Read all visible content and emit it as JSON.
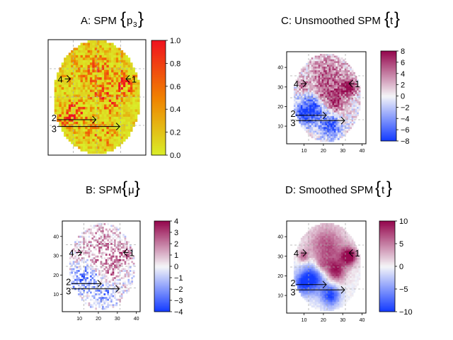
{
  "chart_data": [
    {
      "type": "heatmap",
      "id": "A",
      "title_prefix": "A: SPM",
      "title_symbol": "p",
      "title_subscript": "3",
      "palette": "yellow-red",
      "zlim": [
        0,
        1
      ],
      "colorbar_ticks": [
        "0.0",
        "0.2",
        "0.4",
        "0.6",
        "0.8",
        "1.0"
      ],
      "show_axes": false,
      "grid": true,
      "annotations": [
        "1",
        "2",
        "3",
        "4"
      ],
      "description": "p-value map of brain slice; mostly low values with clusters near 1"
    },
    {
      "type": "heatmap",
      "id": "C",
      "title_prefix": "C: Unsmoothed SPM",
      "title_symbol": "t",
      "palette": "blue-white-magenta",
      "zlim": [
        -8,
        8
      ],
      "colorbar_ticks": [
        "−8",
        "−6",
        "−4",
        "−2",
        "0",
        "2",
        "4",
        "6",
        "8"
      ],
      "x_ticks": [
        "10",
        "20",
        "30",
        "40"
      ],
      "y_ticks": [
        "10",
        "20",
        "30",
        "40"
      ],
      "xlim": [
        1,
        42
      ],
      "ylim": [
        1,
        48
      ],
      "grid": true,
      "annotations": [
        "1",
        "2",
        "3",
        "4"
      ]
    },
    {
      "type": "heatmap",
      "id": "B",
      "title_prefix": "B: SPM",
      "title_symbol": "μ",
      "palette": "blue-white-magenta",
      "zlim": [
        -4,
        4
      ],
      "colorbar_ticks": [
        "−4",
        "−3",
        "−2",
        "−1",
        "0",
        "1",
        "2",
        "3",
        "4"
      ],
      "x_ticks": [
        "10",
        "20",
        "30",
        "40"
      ],
      "y_ticks": [
        "10",
        "20",
        "30",
        "40"
      ],
      "xlim": [
        1,
        42
      ],
      "ylim": [
        1,
        48
      ],
      "grid": true,
      "annotations": [
        "1",
        "2",
        "3",
        "4"
      ]
    },
    {
      "type": "heatmap",
      "id": "D",
      "title_prefix": "D: Smoothed SPM",
      "title_symbol": "t",
      "palette": "blue-white-magenta",
      "zlim": [
        -10,
        10
      ],
      "colorbar_ticks": [
        "−10",
        "−5",
        "0",
        "5",
        "10"
      ],
      "x_ticks": [
        "10",
        "20",
        "30",
        "40"
      ],
      "y_ticks": [
        "10",
        "20",
        "30",
        "40"
      ],
      "xlim": [
        1,
        42
      ],
      "ylim": [
        1,
        48
      ],
      "grid": true,
      "annotations": [
        "1",
        "2",
        "3",
        "4"
      ]
    }
  ]
}
